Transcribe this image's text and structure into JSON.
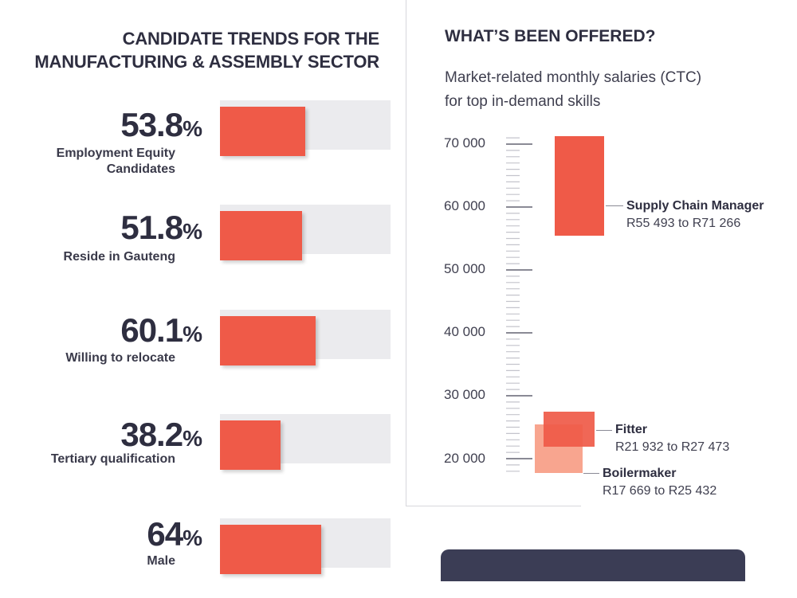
{
  "left": {
    "title_line1": "CANDIDATE TRENDS FOR THE",
    "title_line2": "MANUFACTURING & ASSEMBLY SECTOR"
  },
  "right": {
    "title": "WHAT’S BEEN OFFERED?",
    "subtitle_line1": "Market-related monthly salaries (CTC)",
    "subtitle_line2": "for top in-demand skills"
  },
  "chart_data": [
    {
      "type": "bar",
      "orientation": "horizontal",
      "categories": [
        "Employment Equity Candidates",
        "Reside in Gauteng",
        "Willing to relocate",
        "Tertiary qualification",
        "Male"
      ],
      "values": [
        53.8,
        51.8,
        60.1,
        38.2,
        64
      ],
      "value_labels": [
        "53.8",
        "51.8",
        "60.1",
        "38.2",
        "64"
      ],
      "unit": "%",
      "label_lines": [
        [
          "Employment Equity",
          "Candidates"
        ],
        [
          "Reside in Gauteng"
        ],
        [
          "Willing to relocate"
        ],
        [
          "Tertiary qualification"
        ],
        [
          "Male"
        ]
      ],
      "colors": {
        "bar": "#ef5a48",
        "track": "#ebebee"
      }
    },
    {
      "type": "range",
      "y_ticks": [
        20000,
        30000,
        40000,
        50000,
        60000,
        70000
      ],
      "y_tick_labels": [
        "20 000",
        "30 000",
        "40 000",
        "50 000",
        "60 000",
        "70 000"
      ],
      "series": [
        {
          "name": "Supply Chain Manager",
          "range_text": "R55 493 to R71 266",
          "low": 55493,
          "high": 71266,
          "color": "#ef5a48"
        },
        {
          "name": "Fitter",
          "range_text": "R21 932 to R27 473",
          "low": 21932,
          "high": 27473,
          "color": "#ef5a48"
        },
        {
          "name": "Boilermaker",
          "range_text": "R17 669 to R25 432",
          "low": 17669,
          "high": 25432,
          "color": "#f8a58f"
        }
      ]
    }
  ]
}
